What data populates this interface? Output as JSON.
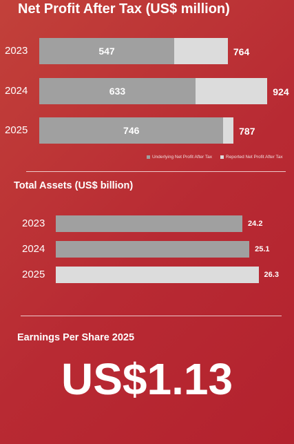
{
  "chart_data": [
    {
      "type": "bar",
      "title": "Net Profit After Tax (US$ million)",
      "categories": [
        "2023",
        "2024",
        "2025"
      ],
      "series": [
        {
          "name": "Underlying Net Profit After Tax",
          "values": [
            547,
            633,
            746
          ],
          "color": "#a0a0a0"
        },
        {
          "name": "Reported Net Profit After Tax",
          "values": [
            764,
            924,
            787
          ],
          "color": "#dcdcdc"
        }
      ],
      "legend": "bottom-right"
    },
    {
      "type": "bar",
      "title": "Total Assets (US$ billion)",
      "categories": [
        "2023",
        "2024",
        "2025"
      ],
      "values": [
        24.2,
        25.1,
        26.3
      ],
      "colors": [
        "#a0a0a0",
        "#a0a0a0",
        "#dcdcdc"
      ]
    }
  ],
  "eps": {
    "title": "Earnings Per Share 2025",
    "value": "US$1.13"
  }
}
